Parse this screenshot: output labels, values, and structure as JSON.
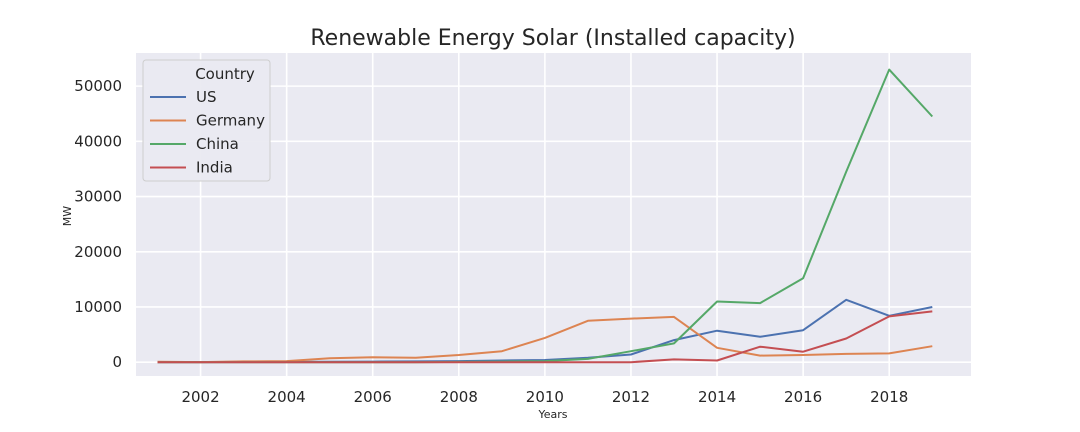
{
  "chart_data": {
    "type": "line",
    "title": "Renewable Energy Solar (Installed capacity)",
    "xlabel": "Years",
    "ylabel": "MW",
    "xlim": [
      2000.5,
      2019.9
    ],
    "ylim": [
      -2500,
      56000
    ],
    "xticks": [
      2002,
      2004,
      2006,
      2008,
      2010,
      2012,
      2014,
      2016,
      2018
    ],
    "yticks": [
      0,
      10000,
      20000,
      30000,
      40000,
      50000
    ],
    "grid": true,
    "legend": {
      "title": "Country",
      "placement": "top-left"
    },
    "x": [
      2001,
      2002,
      2003,
      2004,
      2005,
      2006,
      2007,
      2008,
      2009,
      2010,
      2011,
      2012,
      2013,
      2014,
      2015,
      2016,
      2017,
      2018,
      2019
    ],
    "series": [
      {
        "name": "US",
        "color": "#4c72b0",
        "values": [
          10,
          20,
          50,
          60,
          80,
          100,
          150,
          200,
          300,
          400,
          800,
          1400,
          4000,
          5700,
          4600,
          5800,
          11300,
          8400,
          10000
        ]
      },
      {
        "name": "Germany",
        "color": "#dd8452",
        "values": [
          80,
          20,
          150,
          200,
          700,
          900,
          800,
          1300,
          2000,
          4400,
          7500,
          7900,
          8200,
          2600,
          1200,
          1300,
          1500,
          1600,
          2900
        ]
      },
      {
        "name": "China",
        "color": "#55a868",
        "values": [
          0,
          0,
          0,
          0,
          0,
          0,
          0,
          50,
          100,
          200,
          600,
          2000,
          3400,
          11000,
          10700,
          15200,
          34500,
          53000,
          44500
        ]
      },
      {
        "name": "India",
        "color": "#c44e52",
        "values": [
          0,
          0,
          0,
          0,
          0,
          0,
          0,
          0,
          0,
          0,
          0,
          0,
          500,
          300,
          2800,
          1900,
          4300,
          8300,
          9200
        ]
      }
    ]
  }
}
